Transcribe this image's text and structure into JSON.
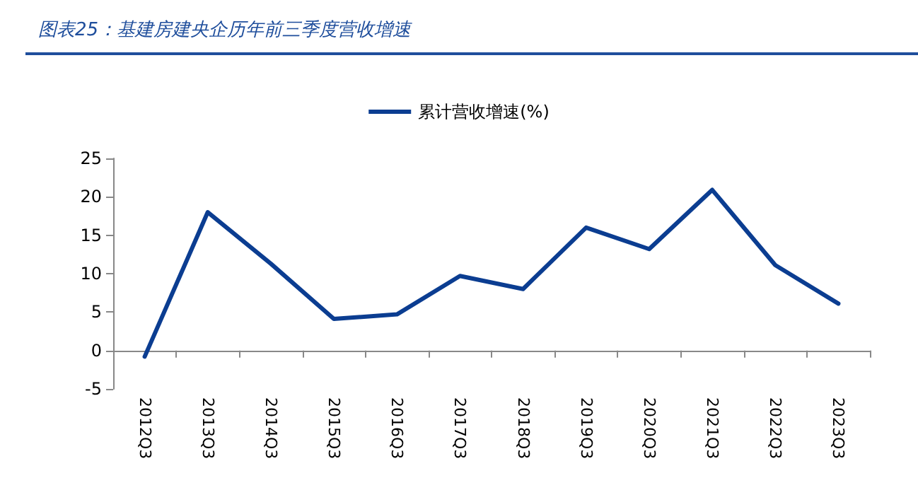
{
  "chart_data": {
    "type": "line",
    "title": "图表25：基建房建央企历年前三季度营收增速",
    "categories": [
      "2012Q3",
      "2013Q3",
      "2014Q3",
      "2015Q3",
      "2016Q3",
      "2017Q3",
      "2018Q3",
      "2019Q3",
      "2020Q3",
      "2021Q3",
      "2022Q3",
      "2023Q3"
    ],
    "series": [
      {
        "name": "累计营收增速(%)",
        "color": "#0b3d91",
        "values": [
          -0.8,
          18,
          11.3,
          4.1,
          4.7,
          9.7,
          8.0,
          16.0,
          13.2,
          20.9,
          11.1,
          6.1
        ]
      }
    ],
    "ylim": [
      -5,
      25
    ],
    "yticks": [
      -5,
      0,
      5,
      10,
      15,
      20,
      25
    ],
    "legend": "top",
    "marker": "none",
    "line_style": "solid"
  }
}
